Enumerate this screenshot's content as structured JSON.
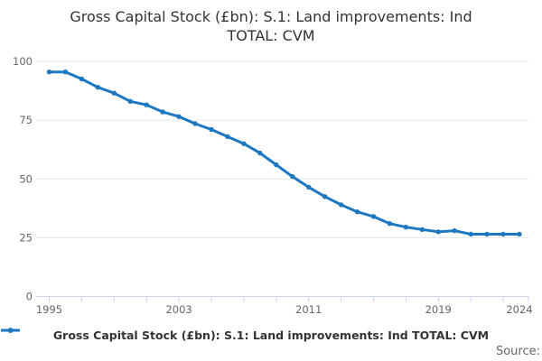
{
  "title_lines": [
    "Gross Capital Stock (£bn): S.1: Land improvements: Ind",
    "TOTAL: CVM"
  ],
  "legend": {
    "label": "Gross Capital Stock (£bn): S.1: Land improvements: Ind TOTAL: CVM"
  },
  "source_label": "Source:",
  "colors": {
    "series": "#1d78c1",
    "gridline": "#e6e6e6",
    "axis_line": "#ccd6eb",
    "axis_label": "#666666",
    "title": "#333333"
  },
  "chart_data": {
    "type": "line",
    "title": "Gross Capital Stock (£bn): S.1: Land improvements: Ind TOTAL: CVM",
    "series_name": "Gross Capital Stock (£bn): S.1: Land improvements: Ind TOTAL: CVM",
    "x": [
      1995,
      1996,
      1997,
      1998,
      1999,
      2000,
      2001,
      2002,
      2003,
      2004,
      2005,
      2006,
      2007,
      2008,
      2009,
      2010,
      2011,
      2012,
      2013,
      2014,
      2015,
      2016,
      2017,
      2018,
      2019,
      2020,
      2021,
      2022,
      2023,
      2024
    ],
    "values": [
      95.5,
      95.5,
      92.5,
      89,
      86.5,
      83,
      81.5,
      78.5,
      76.5,
      73.5,
      71,
      68,
      65,
      61,
      56,
      51,
      46.5,
      42.5,
      39,
      36,
      34,
      31,
      29.5,
      28.5,
      27.5,
      28,
      26.5,
      26.5,
      26.5,
      26.5
    ],
    "xlabel": "",
    "ylabel": "",
    "ylim": [
      0,
      100
    ],
    "yticks": [
      0,
      25,
      50,
      75,
      100
    ],
    "xticks_minor": [
      1995,
      1997,
      1999,
      2001,
      2003,
      2005,
      2007,
      2009,
      2011,
      2013,
      2015,
      2017,
      2019,
      2021,
      2023
    ],
    "xticks_labeled": [
      1995,
      2003,
      2011,
      2019,
      2024
    ],
    "grid": "horizontal",
    "legend_position": "bottom",
    "markers": true
  }
}
